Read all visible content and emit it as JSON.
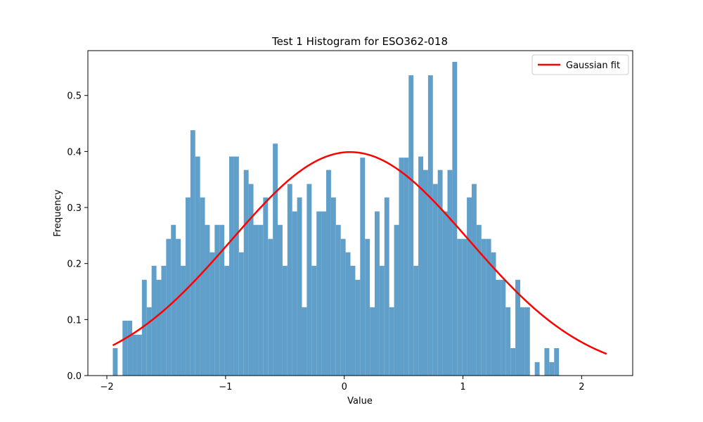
{
  "chart_data": {
    "type": "histogram",
    "title": "Test 1 Histogram for ESO362-018",
    "xlabel": "Value",
    "ylabel": "Frequency",
    "xlim": [
      -2.16,
      2.43
    ],
    "ylim": [
      0,
      0.58
    ],
    "x_ticks": [
      -2,
      -1,
      0,
      1,
      2
    ],
    "x_tick_labels": [
      "−2",
      "−1",
      "0",
      "1",
      "2"
    ],
    "y_ticks": [
      0.0,
      0.1,
      0.2,
      0.3,
      0.4,
      0.5
    ],
    "y_tick_labels": [
      "0.0",
      "0.1",
      "0.2",
      "0.3",
      "0.4",
      "0.5"
    ],
    "legend_position": "upper right",
    "grid": false,
    "histogram": {
      "color": "#5f9fca",
      "bin_start": -1.95,
      "bin_width": 0.04086,
      "values": [
        0.049,
        0.0,
        0.098,
        0.098,
        0.073,
        0.073,
        0.171,
        0.122,
        0.196,
        0.171,
        0.196,
        0.244,
        0.269,
        0.244,
        0.196,
        0.318,
        0.438,
        0.391,
        0.318,
        0.269,
        0.22,
        0.269,
        0.269,
        0.196,
        0.391,
        0.391,
        0.22,
        0.367,
        0.342,
        0.269,
        0.269,
        0.318,
        0.244,
        0.414,
        0.269,
        0.196,
        0.342,
        0.293,
        0.318,
        0.122,
        0.342,
        0.196,
        0.293,
        0.293,
        0.367,
        0.318,
        0.269,
        0.244,
        0.22,
        0.196,
        0.171,
        0.389,
        0.244,
        0.122,
        0.293,
        0.196,
        0.318,
        0.122,
        0.269,
        0.389,
        0.389,
        0.536,
        0.196,
        0.391,
        0.367,
        0.536,
        0.342,
        0.367,
        0.293,
        0.367,
        0.56,
        0.244,
        0.244,
        0.318,
        0.342,
        0.269,
        0.244,
        0.244,
        0.22,
        0.171,
        0.171,
        0.122,
        0.049,
        0.171,
        0.122,
        0.122,
        0.0,
        0.024,
        0.0,
        0.049,
        0.024,
        0.049
      ]
    },
    "series": [
      {
        "name": "Gaussian fit",
        "type": "line",
        "color": "#ff0000",
        "mu": 0.05,
        "sigma": 1.0,
        "x_range": [
          -1.95,
          2.21
        ]
      }
    ]
  }
}
